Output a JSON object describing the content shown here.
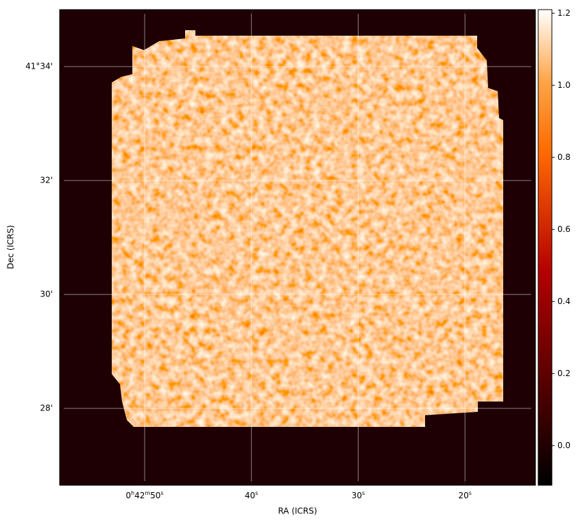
{
  "chart_data": {
    "type": "image",
    "xlabel": "RA (ICRS)",
    "ylabel": "Dec (ICRS)",
    "xlim": [
      57.96,
      13.4
    ],
    "xticks": [
      {
        "value": 50,
        "label": "0h42m50s"
      },
      {
        "value": 40,
        "label": "40s"
      },
      {
        "value": 30,
        "label": "30s"
      },
      {
        "value": 20,
        "label": "20s"
      }
    ],
    "ylim": [
      26.65,
      35.0
    ],
    "yticks": [
      {
        "value": 34,
        "label": "41°34'"
      },
      {
        "value": 32,
        "label": "32'"
      },
      {
        "value": 30,
        "label": "30'"
      },
      {
        "value": 28,
        "label": "28'"
      }
    ],
    "grid": true,
    "colorbar": {
      "lim": [
        -0.11,
        1.21
      ],
      "ticks": [
        {
          "value": 0,
          "label": "0.0"
        },
        0.2,
        0.4,
        0.6,
        0.8,
        {
          "value": 1,
          "label": "1.0"
        },
        1.2
      ]
    }
  }
}
